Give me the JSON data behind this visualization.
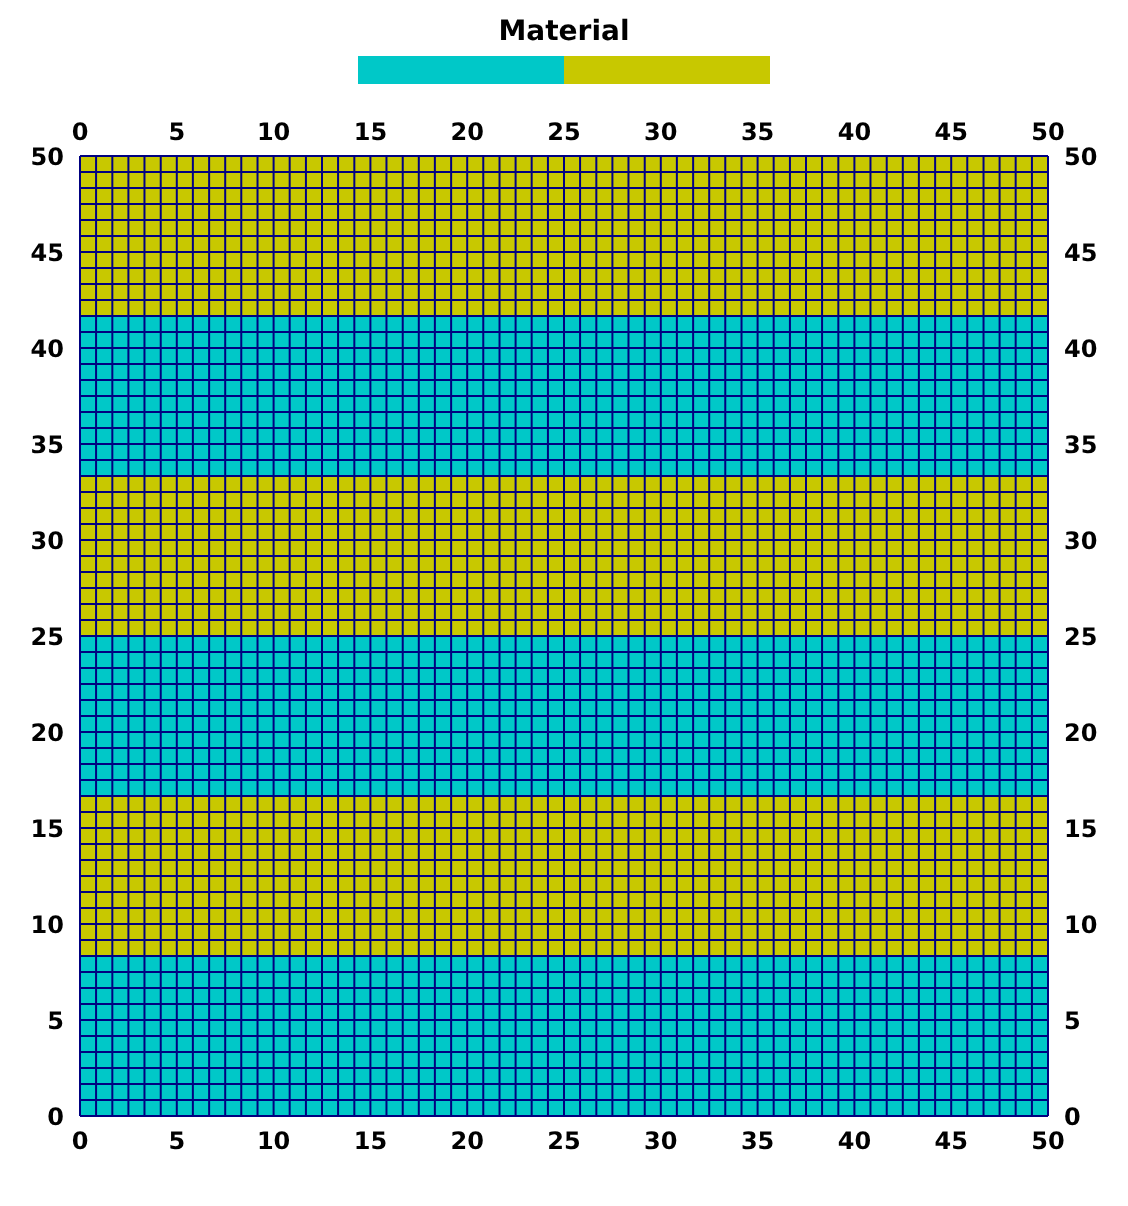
{
  "chart_data": {
    "type": "area",
    "stacked": true,
    "legend_title": "Material",
    "grid": true,
    "x": [
      0,
      50
    ],
    "xlim": [
      0,
      50
    ],
    "xticks": [
      0,
      {
        "value": 0.83,
        "label": null
      },
      {
        "value": 1.67,
        "label": null
      },
      {
        "value": 2.5,
        "label": null
      },
      {
        "value": 3.33,
        "label": null
      },
      {
        "value": 4.17,
        "label": null
      },
      5,
      {
        "value": 5.83,
        "label": null
      },
      {
        "value": 6.67,
        "label": null
      },
      {
        "value": 7.5,
        "label": null
      },
      {
        "value": 8.33,
        "label": null
      },
      {
        "value": 9.17,
        "label": null
      },
      10,
      {
        "value": 10.83,
        "label": null
      },
      {
        "value": 11.67,
        "label": null
      },
      {
        "value": 12.5,
        "label": null
      },
      {
        "value": 13.33,
        "label": null
      },
      {
        "value": 14.17,
        "label": null
      },
      15,
      {
        "value": 15.83,
        "label": null
      },
      {
        "value": 16.67,
        "label": null
      },
      {
        "value": 17.5,
        "label": null
      },
      {
        "value": 18.33,
        "label": null
      },
      {
        "value": 19.17,
        "label": null
      },
      20,
      {
        "value": 20.83,
        "label": null
      },
      {
        "value": 21.67,
        "label": null
      },
      {
        "value": 22.5,
        "label": null
      },
      {
        "value": 23.33,
        "label": null
      },
      {
        "value": 24.17,
        "label": null
      },
      25,
      {
        "value": 25.83,
        "label": null
      },
      {
        "value": 26.67,
        "label": null
      },
      {
        "value": 27.5,
        "label": null
      },
      {
        "value": 28.33,
        "label": null
      },
      {
        "value": 29.17,
        "label": null
      },
      30,
      {
        "value": 30.83,
        "label": null
      },
      {
        "value": 31.67,
        "label": null
      },
      {
        "value": 32.5,
        "label": null
      },
      {
        "value": 33.33,
        "label": null
      },
      {
        "value": 34.17,
        "label": null
      },
      35,
      {
        "value": 35.83,
        "label": null
      },
      {
        "value": 36.67,
        "label": null
      },
      {
        "value": 37.5,
        "label": null
      },
      {
        "value": 38.33,
        "label": null
      },
      {
        "value": 39.17,
        "label": null
      },
      40,
      {
        "value": 40.83,
        "label": null
      },
      {
        "value": 41.67,
        "label": null
      },
      {
        "value": 42.5,
        "label": null
      },
      {
        "value": 43.33,
        "label": null
      },
      {
        "value": 44.17,
        "label": null
      },
      45,
      {
        "value": 45.83,
        "label": null
      },
      {
        "value": 46.67,
        "label": null
      },
      {
        "value": 47.5,
        "label": null
      },
      {
        "value": 48.33,
        "label": null
      },
      {
        "value": 49.17,
        "label": null
      },
      50
    ],
    "x2lim": [
      0,
      50
    ],
    "x2ticks": [
      0,
      5,
      10,
      15,
      20,
      25,
      30,
      35,
      40,
      45,
      50
    ],
    "ylim": [
      0,
      50
    ],
    "yticks": [
      0,
      {
        "value": 0.83,
        "label": null
      },
      {
        "value": 1.67,
        "label": null
      },
      {
        "value": 2.5,
        "label": null
      },
      {
        "value": 3.33,
        "label": null
      },
      {
        "value": 4.17,
        "label": null
      },
      5,
      {
        "value": 5.83,
        "label": null
      },
      {
        "value": 6.67,
        "label": null
      },
      {
        "value": 7.5,
        "label": null
      },
      {
        "value": 8.33,
        "label": null
      },
      {
        "value": 9.17,
        "label": null
      },
      10,
      {
        "value": 10.83,
        "label": null
      },
      {
        "value": 11.67,
        "label": null
      },
      {
        "value": 12.5,
        "label": null
      },
      {
        "value": 13.33,
        "label": null
      },
      {
        "value": 14.17,
        "label": null
      },
      15,
      {
        "value": 15.83,
        "label": null
      },
      {
        "value": 16.67,
        "label": null
      },
      {
        "value": 17.5,
        "label": null
      },
      {
        "value": 18.33,
        "label": null
      },
      {
        "value": 19.17,
        "label": null
      },
      20,
      {
        "value": 20.83,
        "label": null
      },
      {
        "value": 21.67,
        "label": null
      },
      {
        "value": 22.5,
        "label": null
      },
      {
        "value": 23.33,
        "label": null
      },
      {
        "value": 24.17,
        "label": null
      },
      25,
      {
        "value": 25.83,
        "label": null
      },
      {
        "value": 26.67,
        "label": null
      },
      {
        "value": 27.5,
        "label": null
      },
      {
        "value": 28.33,
        "label": null
      },
      {
        "value": 29.17,
        "label": null
      },
      30,
      {
        "value": 30.83,
        "label": null
      },
      {
        "value": 31.67,
        "label": null
      },
      {
        "value": 32.5,
        "label": null
      },
      {
        "value": 33.33,
        "label": null
      },
      {
        "value": 34.17,
        "label": null
      },
      35,
      {
        "value": 35.83,
        "label": null
      },
      {
        "value": 36.67,
        "label": null
      },
      {
        "value": 37.5,
        "label": null
      },
      {
        "value": 38.33,
        "label": null
      },
      {
        "value": 39.17,
        "label": null
      },
      40,
      {
        "value": 40.83,
        "label": null
      },
      {
        "value": 41.67,
        "label": null
      },
      {
        "value": 42.5,
        "label": null
      },
      {
        "value": 43.33,
        "label": null
      },
      {
        "value": 44.17,
        "label": null
      },
      45,
      {
        "value": 45.83,
        "label": null
      },
      {
        "value": 46.67,
        "label": null
      },
      {
        "value": 47.5,
        "label": null
      },
      {
        "value": 48.33,
        "label": null
      },
      {
        "value": 49.17,
        "label": null
      },
      50
    ],
    "y2lim": [
      0,
      50
    ],
    "y2ticks": [
      0,
      5,
      10,
      15,
      20,
      25,
      30,
      35,
      40,
      45,
      50
    ],
    "series": [
      {
        "color": "#00c8c8",
        "values": [
          8.3,
          8.3
        ]
      },
      {
        "color": "#c8c800",
        "values": [
          8.4,
          8.4
        ]
      },
      {
        "color": "#00c8c8",
        "values": [
          8.3,
          8.3
        ]
      },
      {
        "color": "#c8c800",
        "values": [
          8.3,
          8.3
        ]
      },
      {
        "color": "#00c8c8",
        "values": [
          8.4,
          8.4
        ]
      },
      {
        "color": "#c8c800",
        "values": [
          8.3,
          8.3
        ]
      }
    ]
  }
}
